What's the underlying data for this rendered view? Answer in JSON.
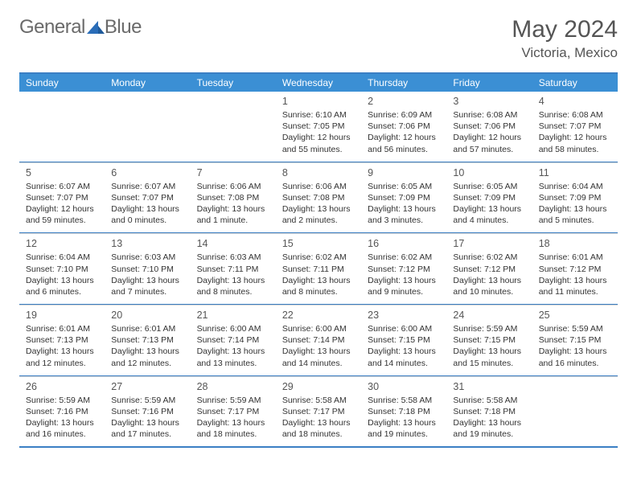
{
  "brand": {
    "name_part1": "General",
    "name_part2": "Blue"
  },
  "title": "May 2024",
  "location": "Victoria, Mexico",
  "colors": {
    "header_bg": "#3b8fd4",
    "border_blue": "#3b7fc4",
    "text_gray": "#555555",
    "body_text": "#333333",
    "logo_gray": "#6a6a6a",
    "logo_blue": "#2a6db8"
  },
  "daysOfWeek": [
    "Sunday",
    "Monday",
    "Tuesday",
    "Wednesday",
    "Thursday",
    "Friday",
    "Saturday"
  ],
  "weeks": [
    [
      null,
      null,
      null,
      {
        "n": "1",
        "sr": "Sunrise: 6:10 AM",
        "ss": "Sunset: 7:05 PM",
        "d1": "Daylight: 12 hours",
        "d2": "and 55 minutes."
      },
      {
        "n": "2",
        "sr": "Sunrise: 6:09 AM",
        "ss": "Sunset: 7:06 PM",
        "d1": "Daylight: 12 hours",
        "d2": "and 56 minutes."
      },
      {
        "n": "3",
        "sr": "Sunrise: 6:08 AM",
        "ss": "Sunset: 7:06 PM",
        "d1": "Daylight: 12 hours",
        "d2": "and 57 minutes."
      },
      {
        "n": "4",
        "sr": "Sunrise: 6:08 AM",
        "ss": "Sunset: 7:07 PM",
        "d1": "Daylight: 12 hours",
        "d2": "and 58 minutes."
      }
    ],
    [
      {
        "n": "5",
        "sr": "Sunrise: 6:07 AM",
        "ss": "Sunset: 7:07 PM",
        "d1": "Daylight: 12 hours",
        "d2": "and 59 minutes."
      },
      {
        "n": "6",
        "sr": "Sunrise: 6:07 AM",
        "ss": "Sunset: 7:07 PM",
        "d1": "Daylight: 13 hours",
        "d2": "and 0 minutes."
      },
      {
        "n": "7",
        "sr": "Sunrise: 6:06 AM",
        "ss": "Sunset: 7:08 PM",
        "d1": "Daylight: 13 hours",
        "d2": "and 1 minute."
      },
      {
        "n": "8",
        "sr": "Sunrise: 6:06 AM",
        "ss": "Sunset: 7:08 PM",
        "d1": "Daylight: 13 hours",
        "d2": "and 2 minutes."
      },
      {
        "n": "9",
        "sr": "Sunrise: 6:05 AM",
        "ss": "Sunset: 7:09 PM",
        "d1": "Daylight: 13 hours",
        "d2": "and 3 minutes."
      },
      {
        "n": "10",
        "sr": "Sunrise: 6:05 AM",
        "ss": "Sunset: 7:09 PM",
        "d1": "Daylight: 13 hours",
        "d2": "and 4 minutes."
      },
      {
        "n": "11",
        "sr": "Sunrise: 6:04 AM",
        "ss": "Sunset: 7:09 PM",
        "d1": "Daylight: 13 hours",
        "d2": "and 5 minutes."
      }
    ],
    [
      {
        "n": "12",
        "sr": "Sunrise: 6:04 AM",
        "ss": "Sunset: 7:10 PM",
        "d1": "Daylight: 13 hours",
        "d2": "and 6 minutes."
      },
      {
        "n": "13",
        "sr": "Sunrise: 6:03 AM",
        "ss": "Sunset: 7:10 PM",
        "d1": "Daylight: 13 hours",
        "d2": "and 7 minutes."
      },
      {
        "n": "14",
        "sr": "Sunrise: 6:03 AM",
        "ss": "Sunset: 7:11 PM",
        "d1": "Daylight: 13 hours",
        "d2": "and 8 minutes."
      },
      {
        "n": "15",
        "sr": "Sunrise: 6:02 AM",
        "ss": "Sunset: 7:11 PM",
        "d1": "Daylight: 13 hours",
        "d2": "and 8 minutes."
      },
      {
        "n": "16",
        "sr": "Sunrise: 6:02 AM",
        "ss": "Sunset: 7:12 PM",
        "d1": "Daylight: 13 hours",
        "d2": "and 9 minutes."
      },
      {
        "n": "17",
        "sr": "Sunrise: 6:02 AM",
        "ss": "Sunset: 7:12 PM",
        "d1": "Daylight: 13 hours",
        "d2": "and 10 minutes."
      },
      {
        "n": "18",
        "sr": "Sunrise: 6:01 AM",
        "ss": "Sunset: 7:12 PM",
        "d1": "Daylight: 13 hours",
        "d2": "and 11 minutes."
      }
    ],
    [
      {
        "n": "19",
        "sr": "Sunrise: 6:01 AM",
        "ss": "Sunset: 7:13 PM",
        "d1": "Daylight: 13 hours",
        "d2": "and 12 minutes."
      },
      {
        "n": "20",
        "sr": "Sunrise: 6:01 AM",
        "ss": "Sunset: 7:13 PM",
        "d1": "Daylight: 13 hours",
        "d2": "and 12 minutes."
      },
      {
        "n": "21",
        "sr": "Sunrise: 6:00 AM",
        "ss": "Sunset: 7:14 PM",
        "d1": "Daylight: 13 hours",
        "d2": "and 13 minutes."
      },
      {
        "n": "22",
        "sr": "Sunrise: 6:00 AM",
        "ss": "Sunset: 7:14 PM",
        "d1": "Daylight: 13 hours",
        "d2": "and 14 minutes."
      },
      {
        "n": "23",
        "sr": "Sunrise: 6:00 AM",
        "ss": "Sunset: 7:15 PM",
        "d1": "Daylight: 13 hours",
        "d2": "and 14 minutes."
      },
      {
        "n": "24",
        "sr": "Sunrise: 5:59 AM",
        "ss": "Sunset: 7:15 PM",
        "d1": "Daylight: 13 hours",
        "d2": "and 15 minutes."
      },
      {
        "n": "25",
        "sr": "Sunrise: 5:59 AM",
        "ss": "Sunset: 7:15 PM",
        "d1": "Daylight: 13 hours",
        "d2": "and 16 minutes."
      }
    ],
    [
      {
        "n": "26",
        "sr": "Sunrise: 5:59 AM",
        "ss": "Sunset: 7:16 PM",
        "d1": "Daylight: 13 hours",
        "d2": "and 16 minutes."
      },
      {
        "n": "27",
        "sr": "Sunrise: 5:59 AM",
        "ss": "Sunset: 7:16 PM",
        "d1": "Daylight: 13 hours",
        "d2": "and 17 minutes."
      },
      {
        "n": "28",
        "sr": "Sunrise: 5:59 AM",
        "ss": "Sunset: 7:17 PM",
        "d1": "Daylight: 13 hours",
        "d2": "and 18 minutes."
      },
      {
        "n": "29",
        "sr": "Sunrise: 5:58 AM",
        "ss": "Sunset: 7:17 PM",
        "d1": "Daylight: 13 hours",
        "d2": "and 18 minutes."
      },
      {
        "n": "30",
        "sr": "Sunrise: 5:58 AM",
        "ss": "Sunset: 7:18 PM",
        "d1": "Daylight: 13 hours",
        "d2": "and 19 minutes."
      },
      {
        "n": "31",
        "sr": "Sunrise: 5:58 AM",
        "ss": "Sunset: 7:18 PM",
        "d1": "Daylight: 13 hours",
        "d2": "and 19 minutes."
      },
      null
    ]
  ]
}
